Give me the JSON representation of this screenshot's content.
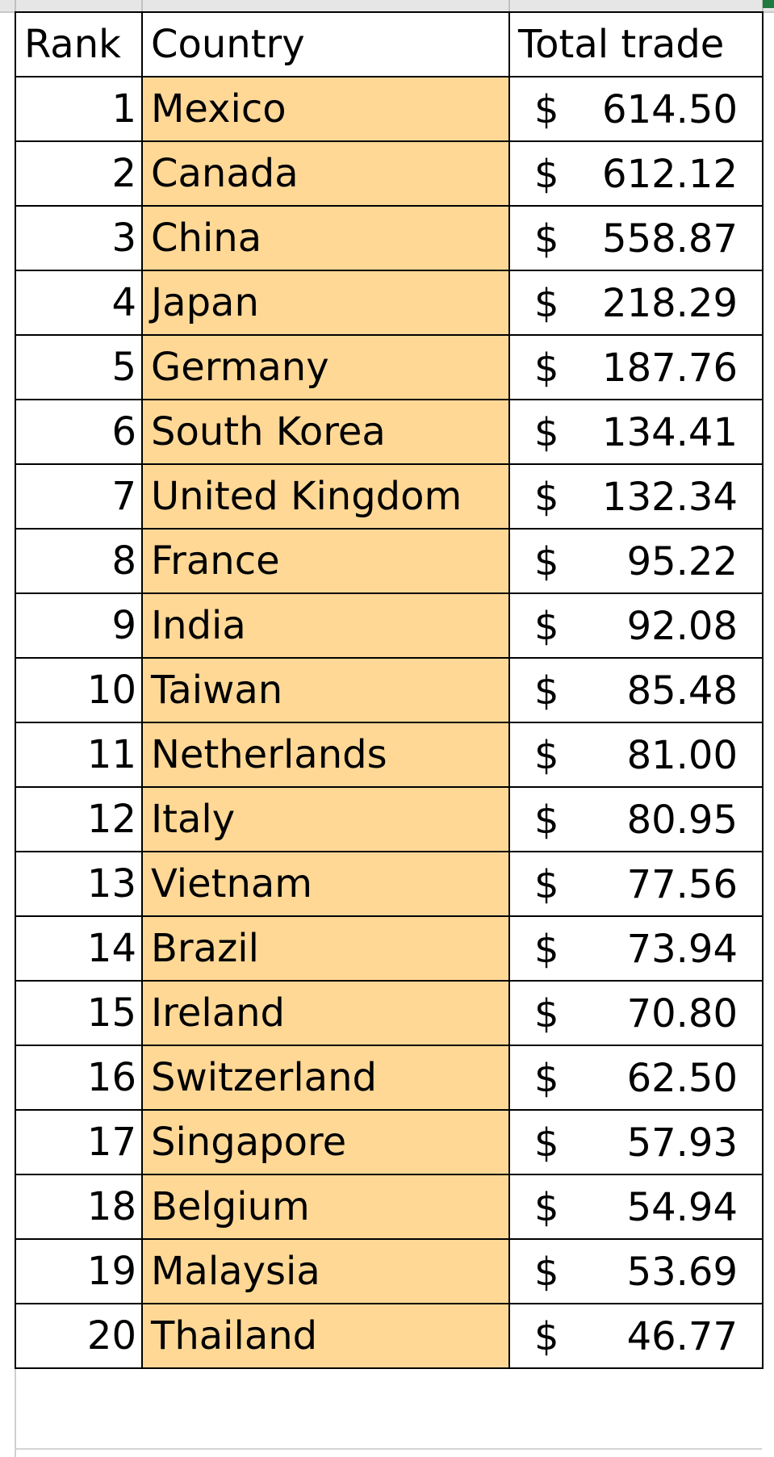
{
  "headers": {
    "rank": "Rank",
    "country": "Country",
    "total_trade": "Total trade"
  },
  "currency_symbol": "$",
  "colors": {
    "country_fill": "#ffd896",
    "border": "#000000",
    "active_cell_marker": "#1f7a3f"
  },
  "rows": [
    {
      "rank": "1",
      "country": "Mexico",
      "value": "614.50"
    },
    {
      "rank": "2",
      "country": "Canada",
      "value": "612.12"
    },
    {
      "rank": "3",
      "country": "China",
      "value": "558.87"
    },
    {
      "rank": "4",
      "country": "Japan",
      "value": "218.29"
    },
    {
      "rank": "5",
      "country": "Germany",
      "value": "187.76"
    },
    {
      "rank": "6",
      "country": "South Korea",
      "value": "134.41"
    },
    {
      "rank": "7",
      "country": "United Kingdom",
      "value": "132.34"
    },
    {
      "rank": "8",
      "country": "France",
      "value": "95.22"
    },
    {
      "rank": "9",
      "country": "India",
      "value": "92.08"
    },
    {
      "rank": "10",
      "country": "Taiwan",
      "value": "85.48"
    },
    {
      "rank": "11",
      "country": "Netherlands",
      "value": "81.00"
    },
    {
      "rank": "12",
      "country": "Italy",
      "value": "80.95"
    },
    {
      "rank": "13",
      "country": "Vietnam",
      "value": "77.56"
    },
    {
      "rank": "14",
      "country": "Brazil",
      "value": "73.94"
    },
    {
      "rank": "15",
      "country": "Ireland",
      "value": "70.80"
    },
    {
      "rank": "16",
      "country": "Switzerland",
      "value": "62.50"
    },
    {
      "rank": "17",
      "country": "Singapore",
      "value": "57.93"
    },
    {
      "rank": "18",
      "country": "Belgium",
      "value": "54.94"
    },
    {
      "rank": "19",
      "country": "Malaysia",
      "value": "53.69"
    },
    {
      "rank": "20",
      "country": "Thailand",
      "value": "46.77"
    }
  ]
}
